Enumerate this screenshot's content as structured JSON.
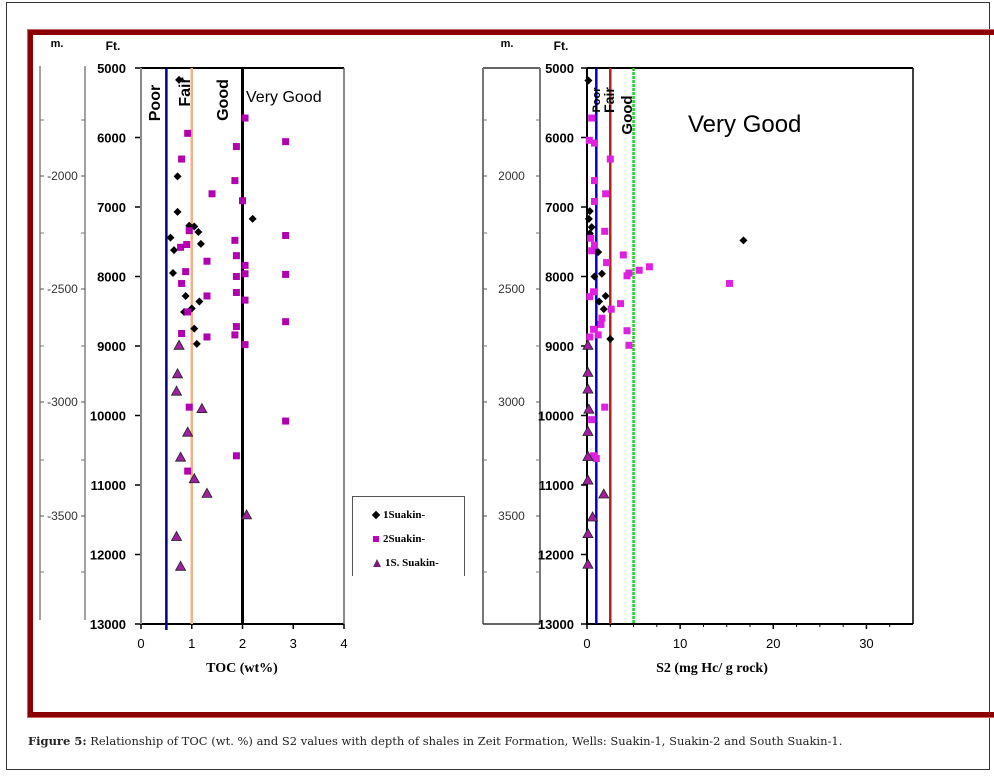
{
  "caption": {
    "label": "Figure 5:",
    "text": " Relationship of TOC (wt. %) and S2 values with depth of shales in Zeit Formation, Wells: Suakin-1, Suakin-2 and South Suakin-1."
  },
  "legend": {
    "items": [
      {
        "label": "1Suakin-",
        "marker": "diamond",
        "color": "#000000"
      },
      {
        "label": "2Suakin-",
        "marker": "square",
        "color": "#c000c0"
      },
      {
        "label": "1S. Suakin-",
        "marker": "triangle",
        "color": "#8b1a8b"
      }
    ]
  },
  "chart_data": [
    {
      "type": "scatter",
      "title": "",
      "xlabel": "TOC (wt%)",
      "ylabel_ft": "Ft.",
      "ylabel_m": "m.",
      "xlim": [
        0,
        4
      ],
      "ylim": [
        13000,
        5000
      ],
      "xticks": [
        "0",
        "1",
        "2",
        "3",
        "4"
      ],
      "yticks_ft": [
        "5000",
        "6000",
        "7000",
        "8000",
        "9000",
        "10000",
        "11000",
        "12000",
        "13000"
      ],
      "yticks_m": [
        "-2000",
        "-2500",
        "-3000",
        "-3500"
      ],
      "thresholds": [
        {
          "value": 0.5,
          "color": "#00008b"
        },
        {
          "value": 1.0,
          "color": "#f4b183"
        },
        {
          "value": 2.0,
          "color": "#000000"
        }
      ],
      "zones": [
        "Poor",
        "Fair",
        "Good",
        "Very Good"
      ],
      "series": [
        {
          "name": "1Suakin-",
          "marker": "diamond",
          "points": [
            [
              0.75,
              5170
            ],
            [
              0.72,
              6560
            ],
            [
              0.72,
              7070
            ],
            [
              1.05,
              7280
            ],
            [
              1.13,
              7360
            ],
            [
              1.18,
              7530
            ],
            [
              0.58,
              7440
            ],
            [
              0.65,
              7620
            ],
            [
              0.63,
              7950
            ],
            [
              0.88,
              8280
            ],
            [
              1.15,
              8360
            ],
            [
              0.85,
              8510
            ],
            [
              1.0,
              8460
            ],
            [
              1.05,
              8750
            ],
            [
              1.1,
              8970
            ],
            [
              2.2,
              7170
            ],
            [
              0.95,
              7270
            ]
          ]
        },
        {
          "name": "2Suakin-",
          "marker": "square",
          "points": [
            [
              2.05,
              5720
            ],
            [
              0.92,
              5940
            ],
            [
              2.85,
              6060
            ],
            [
              1.88,
              6130
            ],
            [
              0.8,
              6310
            ],
            [
              1.85,
              6620
            ],
            [
              1.4,
              6810
            ],
            [
              2.0,
              6910
            ],
            [
              0.95,
              7340
            ],
            [
              1.85,
              7480
            ],
            [
              0.9,
              7540
            ],
            [
              0.78,
              7580
            ],
            [
              2.85,
              7410
            ],
            [
              1.3,
              7780
            ],
            [
              2.05,
              7840
            ],
            [
              1.88,
              7700
            ],
            [
              0.88,
              7930
            ],
            [
              2.05,
              7960
            ],
            [
              1.88,
              8000
            ],
            [
              2.85,
              7970
            ],
            [
              0.8,
              8100
            ],
            [
              2.05,
              8340
            ],
            [
              1.88,
              8230
            ],
            [
              1.3,
              8280
            ],
            [
              0.92,
              8510
            ],
            [
              2.85,
              8650
            ],
            [
              1.3,
              8870
            ],
            [
              0.8,
              8820
            ],
            [
              1.88,
              8720
            ],
            [
              1.85,
              8840
            ],
            [
              2.05,
              8980
            ],
            [
              0.95,
              9880
            ],
            [
              2.85,
              10080
            ],
            [
              0.92,
              10800
            ],
            [
              1.88,
              10580
            ]
          ]
        },
        {
          "name": "1S. Suakin-",
          "marker": "triangle",
          "points": [
            [
              0.75,
              8990
            ],
            [
              0.72,
              9400
            ],
            [
              0.7,
              9650
            ],
            [
              1.2,
              9900
            ],
            [
              0.92,
              10240
            ],
            [
              0.78,
              10600
            ],
            [
              1.05,
              10910
            ],
            [
              1.3,
              11120
            ],
            [
              2.08,
              11430
            ],
            [
              0.7,
              11740
            ],
            [
              0.78,
              12170
            ]
          ]
        }
      ]
    },
    {
      "type": "scatter",
      "title": "",
      "xlabel": "S2 (mg Hc/ g rock)",
      "ylabel_ft": "Ft.",
      "ylabel_m": "m.",
      "xlim": [
        0,
        35
      ],
      "ylim": [
        13000,
        5000
      ],
      "xticks": [
        "0",
        "10",
        "20",
        "30"
      ],
      "yticks_ft": [
        "5000",
        "6000",
        "7000",
        "8000",
        "9000",
        "10000",
        "11000",
        "12000",
        "13000"
      ],
      "yticks_m": [
        "2000",
        "2500",
        "3000",
        "3500"
      ],
      "thresholds": [
        {
          "value": 1.0,
          "color": "#0000cd"
        },
        {
          "value": 2.5,
          "color": "#b22222"
        },
        {
          "value": 5.0,
          "color": "#22cc22"
        }
      ],
      "zones": [
        "Poor",
        "Fair",
        "Good",
        "Very Good"
      ],
      "series": [
        {
          "name": "1Suakin-",
          "marker": "diamond",
          "points": [
            [
              0.15,
              5180
            ],
            [
              0.3,
              7060
            ],
            [
              0.5,
              7290
            ],
            [
              0.2,
              7170
            ],
            [
              0.3,
              7380
            ],
            [
              1.2,
              7650
            ],
            [
              0.8,
              8000
            ],
            [
              1.6,
              7960
            ],
            [
              2.0,
              8280
            ],
            [
              1.3,
              8360
            ],
            [
              1.8,
              8470
            ],
            [
              2.5,
              8900
            ],
            [
              16.8,
              7480
            ],
            [
              0.3,
              7410
            ]
          ]
        },
        {
          "name": "2Suakin-",
          "marker": "square",
          "points": [
            [
              0.5,
              5720
            ],
            [
              0.25,
              6040
            ],
            [
              0.8,
              6080
            ],
            [
              2.5,
              6310
            ],
            [
              0.8,
              6620
            ],
            [
              2.0,
              6810
            ],
            [
              0.8,
              6920
            ],
            [
              1.9,
              7350
            ],
            [
              0.4,
              7450
            ],
            [
              0.8,
              7550
            ],
            [
              0.5,
              7630
            ],
            [
              2.1,
              7800
            ],
            [
              3.9,
              7690
            ],
            [
              4.3,
              7990
            ],
            [
              4.5,
              7950
            ],
            [
              5.6,
              7910
            ],
            [
              6.7,
              7860
            ],
            [
              15.3,
              8100
            ],
            [
              0.7,
              8220
            ],
            [
              0.3,
              8290
            ],
            [
              3.6,
              8390
            ],
            [
              2.6,
              8470
            ],
            [
              1.6,
              8600
            ],
            [
              1.5,
              8690
            ],
            [
              0.7,
              8760
            ],
            [
              4.3,
              8780
            ],
            [
              0.3,
              8870
            ],
            [
              1.2,
              8840
            ],
            [
              4.5,
              8990
            ],
            [
              1.9,
              9880
            ],
            [
              0.5,
              10060
            ],
            [
              0.7,
              10580
            ],
            [
              1.0,
              10620
            ]
          ]
        },
        {
          "name": "1S. Suakin-",
          "marker": "triangle",
          "points": [
            [
              0.1,
              8990
            ],
            [
              0.1,
              9380
            ],
            [
              0.1,
              9620
            ],
            [
              0.2,
              9910
            ],
            [
              0.1,
              10230
            ],
            [
              0.1,
              10590
            ],
            [
              0.1,
              10930
            ],
            [
              1.8,
              11130
            ],
            [
              0.6,
              11460
            ],
            [
              0.1,
              11700
            ],
            [
              0.1,
              12140
            ]
          ]
        }
      ]
    }
  ]
}
